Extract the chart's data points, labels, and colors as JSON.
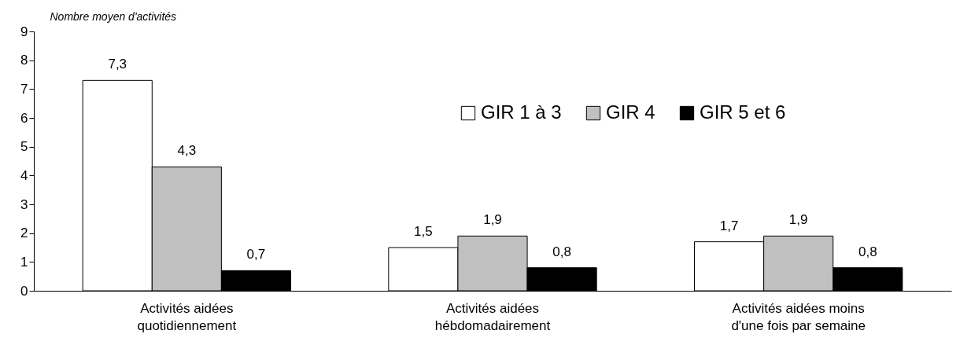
{
  "chart_data": {
    "type": "bar",
    "ylabel": "Nombre moyen d'activités",
    "categories": [
      "Activités aidées quotidiennement",
      "Activités aidées hébdomadairement",
      "Activités aidées moins d'une fois par semaine"
    ],
    "series": [
      {
        "name": "GIR 1 à 3",
        "color": "#ffffff",
        "values": [
          7.3,
          1.5,
          1.7
        ],
        "value_labels": [
          "7,3",
          "1,5",
          "1,7"
        ]
      },
      {
        "name": "GIR 4",
        "color": "#c0c0c0",
        "values": [
          4.3,
          1.9,
          1.9
        ],
        "value_labels": [
          "4,3",
          "1,9",
          "1,9"
        ]
      },
      {
        "name": "GIR 5 et 6",
        "color": "#000000",
        "values": [
          0.7,
          0.8,
          0.8
        ],
        "value_labels": [
          "0,7",
          "0,8",
          "0,8"
        ]
      }
    ],
    "ylim": [
      0,
      9
    ],
    "yticks": [
      0,
      1,
      2,
      3,
      4,
      5,
      6,
      7,
      8,
      9
    ],
    "grid": false,
    "legend": "top right"
  }
}
